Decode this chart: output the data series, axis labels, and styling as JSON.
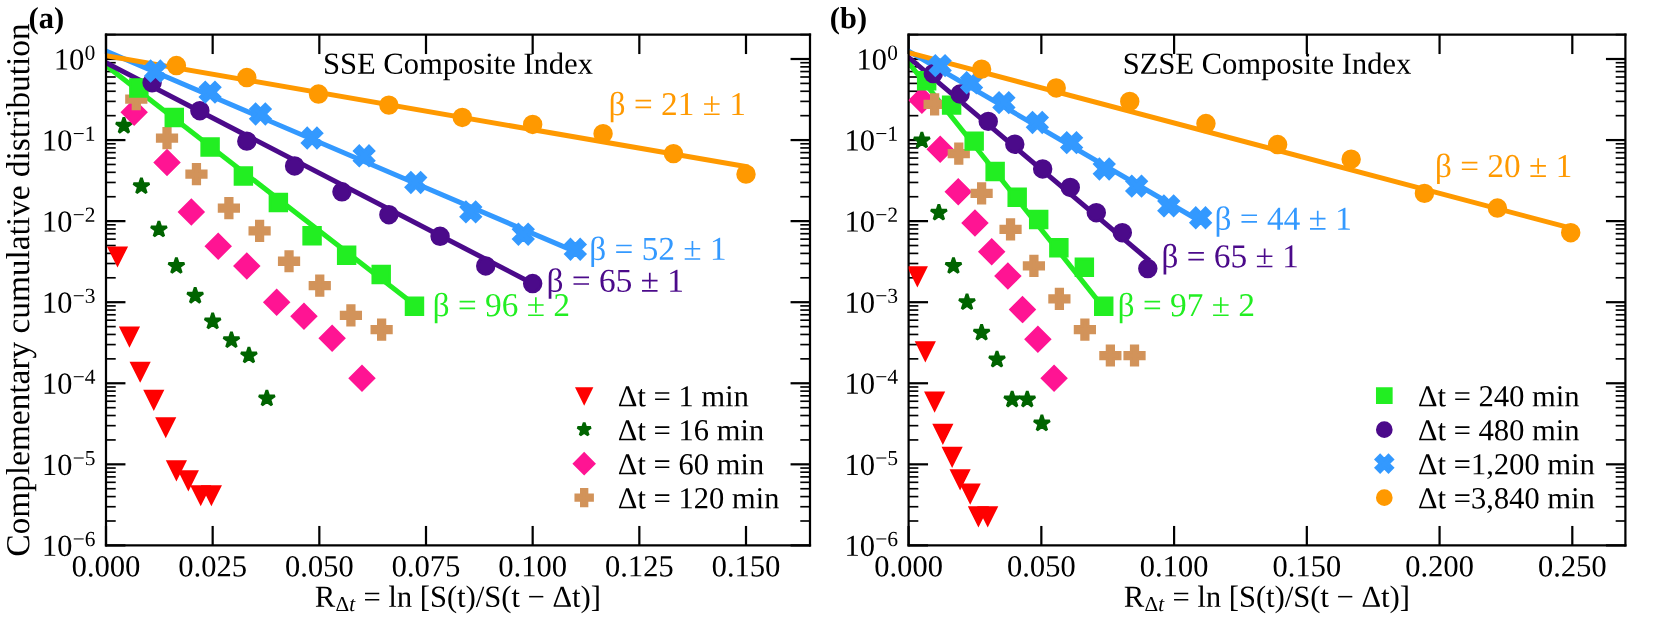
{
  "chart_data": [
    {
      "type": "scatter",
      "title": "SSE Composite Index",
      "xlabel": "R$_{Δt}$ = ln [S(t)/S(t − Δt)]",
      "ylabel": "Complementary cumulative distribution",
      "log": "y",
      "legend": "bottom right",
      "grid": false,
      "xlim": [
        0,
        0.165
      ],
      "xticks": [
        {
          "value": 0,
          "label": "0.000"
        },
        {
          "value": 0.025,
          "label": "0.025"
        },
        {
          "value": 0.05,
          "label": "0.050"
        },
        {
          "value": 0.075,
          "label": "0.075"
        },
        {
          "value": 0.1,
          "label": "0.100"
        },
        {
          "value": 0.125,
          "label": "0.125"
        },
        {
          "value": 0.15,
          "label": "0.150"
        }
      ],
      "ylim": [
        1e-06,
        2
      ],
      "yticks": [
        {
          "value": 1e-06,
          "label": "10$^{−6}$"
        },
        {
          "value": 1e-05,
          "label": "10$^{−5}$"
        },
        {
          "value": 0.0001,
          "label": "10$^{−4}$"
        },
        {
          "value": 0.001,
          "label": "10$^{−3}$"
        },
        {
          "value": 0.01,
          "label": "10$^{−2}$"
        },
        {
          "value": 0.1,
          "label": "10$^{−1}$"
        },
        {
          "value": 1,
          "label": "10$^{0}$"
        }
      ],
      "annotations": [
        "(a)",
        {
          "text": "β = 21 ± 1",
          "x": 0.15,
          "y": 0.047
        },
        {
          "text": "β = 52 ± 1",
          "x": 0.11,
          "y": 0.0042
        },
        {
          "text": "β = 65 ± 1",
          "x": 0.1,
          "y": 0.0017
        },
        {
          "text": "β = 96 ± 2",
          "x": 0.0733,
          "y": 0.00085
        }
      ],
      "series": [
        {
          "type": "scatter",
          "name": "Δt = 1 min",
          "color": "#ff0000",
          "marker": "triangle",
          "x": [
            0.0027,
            0.0055,
            0.008,
            0.0112,
            0.014,
            0.0165,
            0.0193,
            0.0222,
            0.0247
          ],
          "values": [
            0.0037,
            0.00038,
            0.00014,
            6.3e-05,
            2.9e-05,
            8.5e-06,
            6.4e-06,
            4.2e-06,
            4.2e-06
          ]
        },
        {
          "type": "scatter",
          "name": "Δt = 16 min",
          "color": "#006400",
          "marker": "star",
          "x": [
            0.0042,
            0.0083,
            0.0124,
            0.0165,
            0.0209,
            0.025,
            0.0294,
            0.0335,
            0.0377
          ],
          "values": [
            0.15,
            0.027,
            0.0079,
            0.0028,
            0.0012,
            0.00058,
            0.00034,
            0.00022,
            6.5e-05
          ]
        },
        {
          "type": "scatter",
          "name": "Δt = 60 min",
          "color": "#ff1493",
          "marker": "diamond",
          "x": [
            0.0066,
            0.0143,
            0.02,
            0.0263,
            0.033,
            0.04,
            0.0464,
            0.053,
            0.06
          ],
          "values": [
            0.22,
            0.053,
            0.013,
            0.0049,
            0.0028,
            0.001,
            0.00067,
            0.00036,
            0.000115
          ]
        },
        {
          "type": "scatter",
          "name": "Δt = 120 min",
          "color": "#d2935a",
          "marker": "plus",
          "x": [
            0.0071,
            0.0143,
            0.0212,
            0.0288,
            0.036,
            0.0429,
            0.0501,
            0.0574,
            0.0646
          ],
          "values": [
            0.32,
            0.106,
            0.038,
            0.0145,
            0.0076,
            0.0032,
            0.0016,
            0.00069,
            0.00046
          ]
        },
        {
          "type": "scatter",
          "color": "#22ee22",
          "marker": "square",
          "x": [
            0.0077,
            0.016,
            0.0244,
            0.0322,
            0.0404,
            0.0483,
            0.0564,
            0.0645,
            0.0723
          ],
          "values": [
            0.44,
            0.19,
            0.082,
            0.036,
            0.017,
            0.0066,
            0.0038,
            0.0022,
            0.00089
          ]
        },
        {
          "type": "scatter",
          "color": "#4b0a8a",
          "marker": "circle",
          "x": [
            0.0108,
            0.022,
            0.033,
            0.0442,
            0.0553,
            0.0663,
            0.0783,
            0.089,
            0.1
          ],
          "values": [
            0.51,
            0.23,
            0.097,
            0.048,
            0.023,
            0.012,
            0.0065,
            0.0028,
            0.0017
          ]
        },
        {
          "type": "scatter",
          "color": "#3399ff",
          "marker": "cross",
          "x": [
            0.0116,
            0.0244,
            0.0362,
            0.0483,
            0.0605,
            0.0726,
            0.0855,
            0.0978,
            0.11
          ],
          "values": [
            0.71,
            0.39,
            0.21,
            0.106,
            0.064,
            0.03,
            0.013,
            0.0069,
            0.0045
          ]
        },
        {
          "type": "scatter",
          "color": "#ff9900",
          "marker": "circle",
          "x": [
            0.0165,
            0.033,
            0.0498,
            0.0663,
            0.0835,
            0.1,
            0.1165,
            0.133,
            0.15
          ],
          "values": [
            0.83,
            0.59,
            0.37,
            0.27,
            0.19,
            0.156,
            0.12,
            0.068,
            0.038
          ]
        },
        {
          "type": "line",
          "color": "#22ee22",
          "x": [
            0,
            0.0733
          ],
          "values": [
            0.83,
            0.00085
          ]
        },
        {
          "type": "line",
          "color": "#4b0a8a",
          "x": [
            0,
            0.1
          ],
          "values": [
            0.9,
            0.0017
          ]
        },
        {
          "type": "line",
          "color": "#3399ff",
          "x": [
            0,
            0.11
          ],
          "values": [
            1.25,
            0.0042
          ]
        },
        {
          "type": "line",
          "color": "#ff9900",
          "x": [
            0,
            0.15
          ],
          "values": [
            1.1,
            0.047
          ]
        }
      ]
    },
    {
      "type": "scatter",
      "title": "SZSE Composite Index",
      "xlabel": "R$_{Δt}$ = ln [S(t)/S(t − Δt)]",
      "log": "y",
      "legend": "bottom right",
      "grid": false,
      "xlim": [
        0,
        0.27
      ],
      "xticks": [
        {
          "value": 0,
          "label": "0.000"
        },
        {
          "value": 0.05,
          "label": "0.050"
        },
        {
          "value": 0.1,
          "label": "0.100"
        },
        {
          "value": 0.15,
          "label": "0.150"
        },
        {
          "value": 0.2,
          "label": "0.200"
        },
        {
          "value": 0.25,
          "label": "0.250"
        }
      ],
      "ylim": [
        1e-06,
        2
      ],
      "yticks": [
        {
          "value": 1e-06,
          "label": "10$^{−6}$"
        },
        {
          "value": 1e-05,
          "label": "10$^{−5}$"
        },
        {
          "value": 0.0001,
          "label": "10$^{−4}$"
        },
        {
          "value": 0.001,
          "label": "10$^{−3}$"
        },
        {
          "value": 0.01,
          "label": "10$^{−2}$"
        },
        {
          "value": 0.1,
          "label": "10$^{−1}$"
        },
        {
          "value": 1,
          "label": "10$^{0}$"
        }
      ],
      "annotations": [
        "(b)",
        {
          "text": "β = 20 ± 1",
          "x": 0.25,
          "y": 0.0081
        },
        {
          "text": "β = 44 ± 1",
          "x": 0.11,
          "y": 0.0099
        },
        {
          "text": "β = 65 ± 1",
          "x": 0.09,
          "y": 0.0034
        },
        {
          "text": "β = 97 ± 2",
          "x": 0.0735,
          "y": 0.00085
        }
      ],
      "series": [
        {
          "type": "scatter",
          "color": "#ff0000",
          "marker": "triangle",
          "x": [
            0.0033,
            0.0063,
            0.0098,
            0.0129,
            0.0164,
            0.0194,
            0.0232,
            0.0263,
            0.0298
          ],
          "values": [
            0.0021,
            0.00025,
            6e-05,
            2.4e-05,
            1.25e-05,
            6.6e-06,
            4.4e-06,
            2.3e-06,
            2.3e-06
          ]
        },
        {
          "type": "scatter",
          "color": "#006400",
          "marker": "star",
          "x": [
            0.005,
            0.0114,
            0.0169,
            0.022,
            0.0275,
            0.0333,
            0.039,
            0.0447,
            0.0502
          ],
          "values": [
            0.099,
            0.0127,
            0.0028,
            0.001,
            0.00042,
            0.000196,
            6.3e-05,
            6.3e-05,
            3.2e-05
          ]
        },
        {
          "type": "scatter",
          "color": "#ff1493",
          "marker": "diamond",
          "x": [
            0.005,
            0.0119,
            0.0187,
            0.025,
            0.0313,
            0.0374,
            0.0429,
            0.0487,
            0.0548
          ],
          "values": [
            0.31,
            0.077,
            0.023,
            0.0095,
            0.0042,
            0.0021,
            0.00081,
            0.00035,
            0.000115
          ]
        },
        {
          "type": "scatter",
          "color": "#d2935a",
          "marker": "plus",
          "x": [
            0.0098,
            0.0189,
            0.0275,
            0.0384,
            0.0472,
            0.0568,
            0.0664,
            0.076,
            0.0851
          ],
          "values": [
            0.275,
            0.068,
            0.022,
            0.0079,
            0.0028,
            0.0011,
            0.00046,
            0.00022,
            0.00022
          ]
        },
        {
          "type": "scatter",
          "name": "Δt = 240 min",
          "color": "#22ee22",
          "marker": "square",
          "x": [
            0.0068,
            0.0162,
            0.0247,
            0.0326,
            0.0409,
            0.049,
            0.0566,
            0.0662,
            0.0735
          ],
          "values": [
            0.54,
            0.27,
            0.097,
            0.041,
            0.0197,
            0.0105,
            0.0047,
            0.0027,
            0.00089
          ]
        },
        {
          "type": "scatter",
          "name": "Δt = 480 min",
          "color": "#4b0a8a",
          "marker": "circle",
          "x": [
            0.0093,
            0.0194,
            0.03,
            0.04,
            0.0505,
            0.0609,
            0.0707,
            0.0805,
            0.0901
          ],
          "values": [
            0.66,
            0.37,
            0.17,
            0.089,
            0.044,
            0.026,
            0.0127,
            0.0072,
            0.0026
          ]
        },
        {
          "type": "scatter",
          "name": "Δt =1,200 min",
          "color": "#3399ff",
          "marker": "cross",
          "x": [
            0.0119,
            0.0237,
            0.0359,
            0.0485,
            0.0614,
            0.0737,
            0.0859,
            0.098,
            0.11
          ],
          "values": [
            0.83,
            0.51,
            0.29,
            0.165,
            0.093,
            0.044,
            0.027,
            0.0154,
            0.011
          ]
        },
        {
          "type": "scatter",
          "name": "Δt =3,840 min",
          "color": "#ff9900",
          "marker": "circle",
          "x": [
            0.0275,
            0.0556,
            0.0833,
            0.112,
            0.139,
            0.1667,
            0.1943,
            0.2218,
            0.2494
          ],
          "values": [
            0.75,
            0.44,
            0.3,
            0.16,
            0.088,
            0.058,
            0.022,
            0.0145,
            0.0072
          ]
        },
        {
          "type": "line",
          "color": "#22ee22",
          "x": [
            0,
            0.0735
          ],
          "values": [
            0.9,
            0.00085
          ]
        },
        {
          "type": "line",
          "color": "#4b0a8a",
          "x": [
            0,
            0.09
          ],
          "values": [
            1.05,
            0.0034
          ]
        },
        {
          "type": "line",
          "color": "#3399ff",
          "x": [
            0,
            0.11
          ],
          "values": [
            1.25,
            0.0099
          ]
        },
        {
          "type": "line",
          "color": "#ff9900",
          "x": [
            0,
            0.25
          ],
          "values": [
            1.2,
            0.0081
          ]
        }
      ]
    }
  ]
}
